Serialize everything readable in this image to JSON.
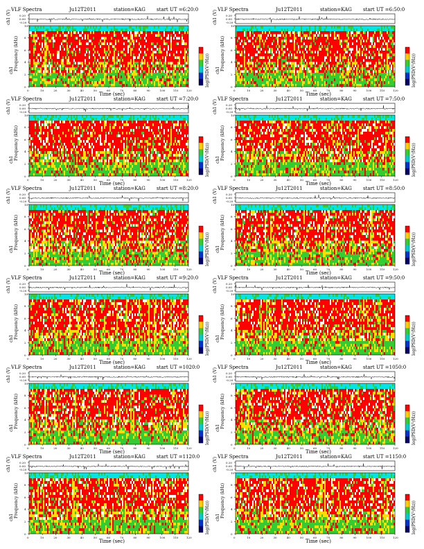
{
  "page": {
    "title_prefix": "VLF Spectra",
    "station_label": "station=KAG",
    "start_label": "start UT ="
  },
  "labels": {
    "ch1_axis": "ch1 (V)",
    "freq_axis_l1": "ch1",
    "freq_axis_l2": "Frequency (kHz)",
    "colorbar_axis": "log(PSD(V²/Hz))",
    "time_axis": "Time (sec)"
  },
  "colors": {
    "spectrogram": [
      "#ff0000",
      "#ffdd00",
      "#ffffff",
      "#33cc33",
      "#00e6e6",
      "#0000aa",
      "#000000"
    ],
    "colorbar": [
      "#ff0000",
      "#ffcc00",
      "#33cc33",
      "#00cccc",
      "#0033cc",
      "#000066"
    ]
  },
  "chart_data": [
    {
      "type": "heatmap",
      "date": "Ju12T2011",
      "start": "6:20:0",
      "x_ticks": [
        0,
        10,
        20,
        30,
        40,
        50,
        60,
        70,
        80,
        90,
        100,
        110,
        120
      ],
      "xlim": [
        0,
        120
      ],
      "y_ticks": [
        0,
        2,
        4,
        6,
        8,
        10
      ],
      "ylim": [
        0,
        10
      ],
      "ch1_ticks": [
        "0.20",
        "0.00",
        "-0.20"
      ],
      "xlabel": "Time (sec)",
      "ylabel": "Frequency (kHz)"
    },
    {
      "type": "heatmap",
      "date": "Ju12T2011",
      "start": "6:50:0",
      "x_ticks": [
        0,
        10,
        20,
        30,
        40,
        50,
        60,
        70,
        80,
        90,
        100,
        110,
        120
      ],
      "xlim": [
        0,
        120
      ],
      "y_ticks": [
        0,
        2,
        4,
        6,
        8,
        10
      ],
      "ylim": [
        0,
        10
      ],
      "ch1_ticks": [
        "0.20",
        "0.00",
        "-0.20"
      ],
      "xlabel": "Time (sec)",
      "ylabel": "Frequency (kHz)"
    },
    {
      "type": "heatmap",
      "date": "Ju12T2011",
      "start": "7:20:0",
      "x_ticks": [
        0,
        10,
        20,
        30,
        40,
        50,
        60,
        70,
        80,
        90,
        100,
        110,
        120
      ],
      "xlim": [
        0,
        120
      ],
      "y_ticks": [
        0,
        2,
        4,
        6,
        8,
        10
      ],
      "ylim": [
        0,
        10
      ],
      "ch1_ticks": [
        "0.20",
        "0.00",
        "-0.20"
      ],
      "xlabel": "Time (sec)",
      "ylabel": "Frequency (kHz)"
    },
    {
      "type": "heatmap",
      "date": "Ju12T2011",
      "start": "7:50:0",
      "x_ticks": [
        0,
        10,
        20,
        30,
        40,
        50,
        60,
        70,
        80,
        90,
        100,
        110,
        120
      ],
      "xlim": [
        0,
        120
      ],
      "y_ticks": [
        0,
        2,
        4,
        6,
        8,
        10
      ],
      "ylim": [
        0,
        10
      ],
      "ch1_ticks": [
        "0.20",
        "0.00",
        "-0.20"
      ],
      "xlabel": "Time (sec)",
      "ylabel": "Frequency (kHz)"
    },
    {
      "type": "heatmap",
      "date": "Ju12T2011",
      "start": "8:20:0",
      "x_ticks": [
        0,
        10,
        20,
        30,
        40,
        50,
        60,
        70,
        80,
        90,
        100,
        110,
        120
      ],
      "xlim": [
        0,
        120
      ],
      "y_ticks": [
        0,
        2,
        4,
        6,
        8,
        10
      ],
      "ylim": [
        0,
        10
      ],
      "ch1_ticks": [
        "0.20",
        "0.00",
        "-0.20"
      ],
      "xlabel": "Time (sec)",
      "ylabel": "Frequency (kHz)"
    },
    {
      "type": "heatmap",
      "date": "Ju12T2011",
      "start": "8:50:0",
      "x_ticks": [
        0,
        10,
        20,
        30,
        40,
        50,
        60,
        70,
        80,
        90,
        100,
        110,
        120
      ],
      "xlim": [
        0,
        120
      ],
      "y_ticks": [
        0,
        2,
        4,
        6,
        8,
        10
      ],
      "ylim": [
        0,
        10
      ],
      "ch1_ticks": [
        "0.20",
        "0.00",
        "-0.20"
      ],
      "xlabel": "Time (sec)",
      "ylabel": "Frequency (kHz)"
    },
    {
      "type": "heatmap",
      "date": "Ju12T2011",
      "start": "9:20:0",
      "x_ticks": [
        0,
        10,
        20,
        30,
        40,
        50,
        60,
        70,
        80,
        90,
        100,
        110,
        120
      ],
      "xlim": [
        0,
        120
      ],
      "y_ticks": [
        0,
        2,
        4,
        6,
        8,
        10
      ],
      "ylim": [
        0,
        10
      ],
      "ch1_ticks": [
        "0.20",
        "0.00",
        "-0.20"
      ],
      "xlabel": "Time (sec)",
      "ylabel": "Frequency (kHz)"
    },
    {
      "type": "heatmap",
      "date": "Ju12T2011",
      "start": "9:50:0",
      "x_ticks": [
        0,
        10,
        20,
        30,
        40,
        50,
        60,
        70,
        80,
        90,
        100,
        110,
        120
      ],
      "xlim": [
        0,
        120
      ],
      "y_ticks": [
        0,
        2,
        4,
        6,
        8,
        10
      ],
      "ylim": [
        0,
        10
      ],
      "ch1_ticks": [
        "0.20",
        "0.00",
        "-0.20"
      ],
      "xlabel": "Time (sec)",
      "ylabel": "Frequency (kHz)"
    },
    {
      "type": "heatmap",
      "date": "Ju12T2011",
      "start": "1020:0",
      "x_ticks": [
        0,
        10,
        20,
        30,
        40,
        50,
        60,
        70,
        80,
        90,
        100,
        110,
        120
      ],
      "xlim": [
        0,
        120
      ],
      "y_ticks": [
        0,
        2,
        4,
        6,
        8,
        10
      ],
      "ylim": [
        0,
        10
      ],
      "ch1_ticks": [
        "0.20",
        "0.00",
        "-0.20"
      ],
      "xlabel": "Time (sec)",
      "ylabel": "Frequency (kHz)"
    },
    {
      "type": "heatmap",
      "date": "Ju12T2011",
      "start": "1050:0",
      "x_ticks": [
        0,
        10,
        20,
        30,
        40,
        50,
        60,
        70,
        80,
        90,
        100,
        110,
        120
      ],
      "xlim": [
        0,
        120
      ],
      "y_ticks": [
        0,
        2,
        4,
        6,
        8,
        10
      ],
      "ylim": [
        0,
        10
      ],
      "ch1_ticks": [
        "0.20",
        "0.00",
        "-0.20"
      ],
      "xlabel": "Time (sec)",
      "ylabel": "Frequency (kHz)"
    },
    {
      "type": "heatmap",
      "date": "Ju12T2011",
      "start": "1120:0",
      "x_ticks": [
        0,
        10,
        20,
        30,
        40,
        50,
        60,
        70,
        80,
        90,
        100,
        110,
        120
      ],
      "xlim": [
        0,
        120
      ],
      "y_ticks": [
        0,
        2,
        4,
        6,
        8,
        10
      ],
      "ylim": [
        0,
        10
      ],
      "ch1_ticks": [
        "0.20",
        "0.00",
        "-0.20"
      ],
      "xlabel": "Time (sec)",
      "ylabel": "Frequency (kHz)"
    },
    {
      "type": "heatmap",
      "date": "Ju12T2011",
      "start": "1150:0",
      "x_ticks": [
        0,
        10,
        20,
        30,
        40,
        50,
        60,
        70,
        80,
        90,
        100,
        110,
        120
      ],
      "xlim": [
        0,
        120
      ],
      "y_ticks": [
        0,
        2,
        4,
        6,
        8,
        10
      ],
      "ylim": [
        0,
        10
      ],
      "ch1_ticks": [
        "0.20",
        "0.00",
        "-0.20"
      ],
      "xlabel": "Time (sec)",
      "ylabel": "Frequency (kHz)"
    }
  ]
}
